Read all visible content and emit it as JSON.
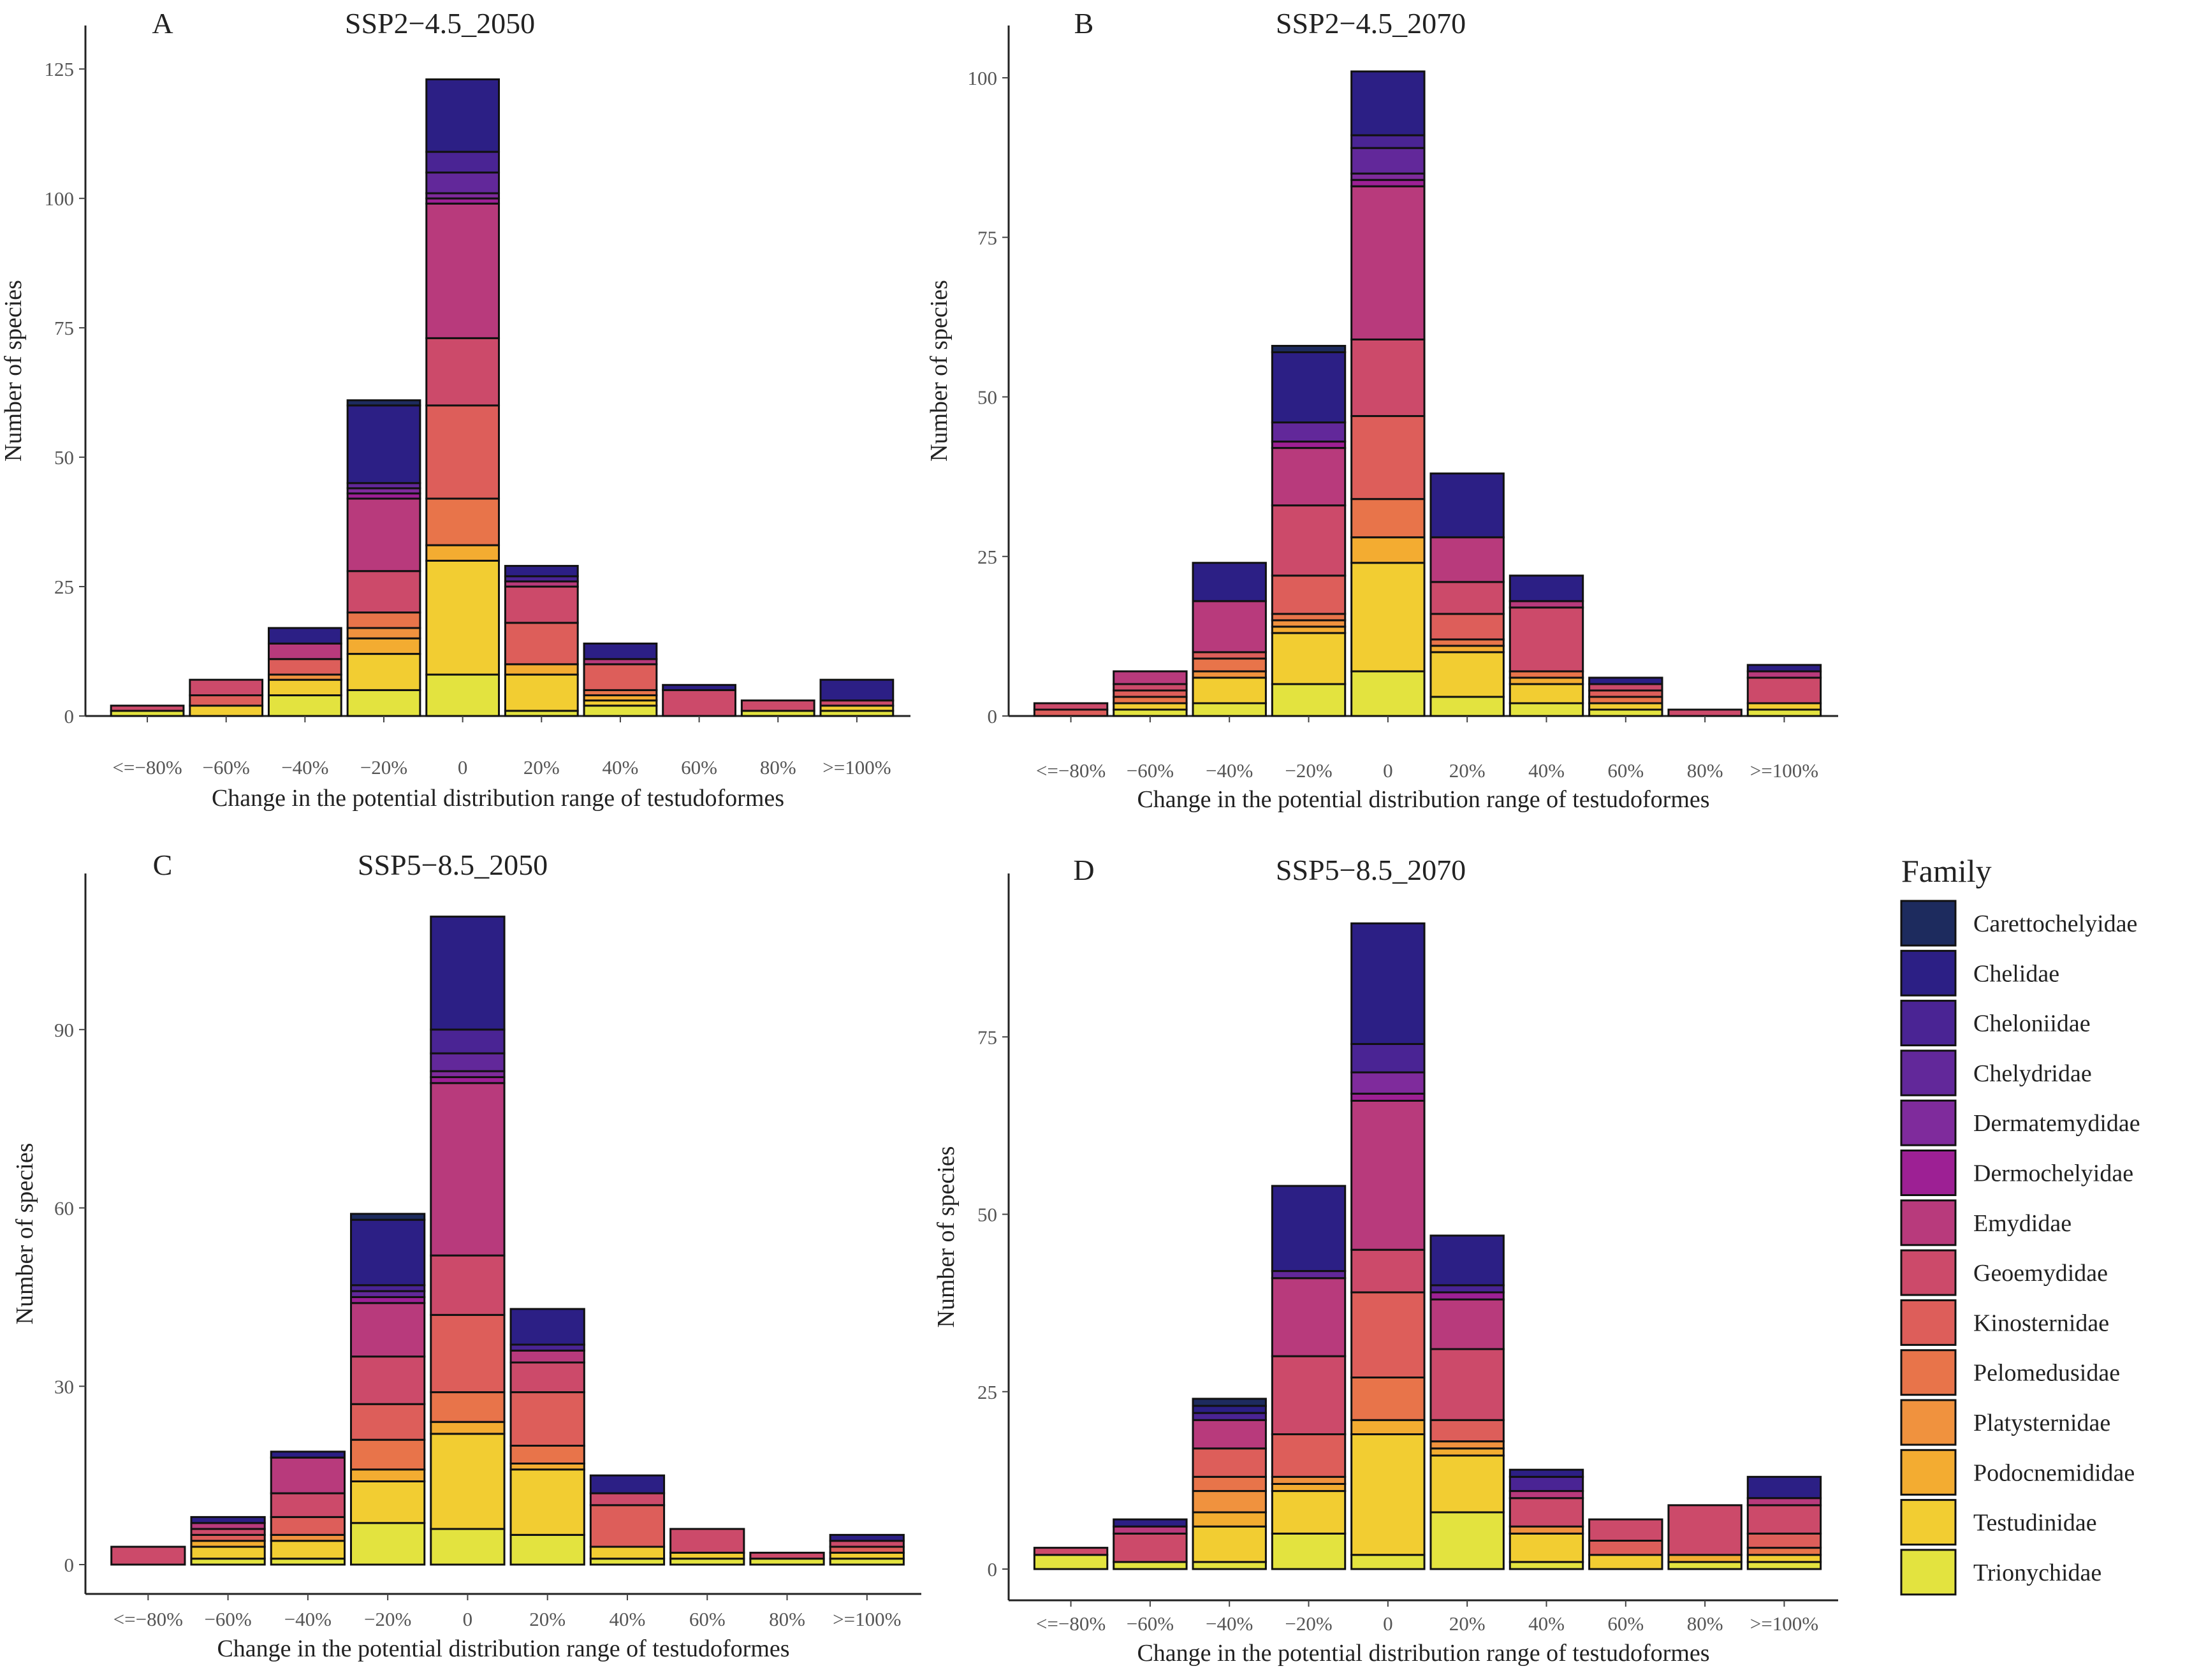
{
  "chart_data": {
    "type": "bar",
    "stacked": true,
    "family_order": [
      "Trionychidae",
      "Testudinidae",
      "Podocnemididae",
      "Platysternidae",
      "Pelomedusidae",
      "Kinosternidae",
      "Geoemydidae",
      "Emydidae",
      "Dermochelyidae",
      "Dermatemydidae",
      "Chelydridae",
      "Cheloniidae",
      "Chelidae",
      "Carettochelyidae"
    ],
    "legend": {
      "title": "Family",
      "placement": "right",
      "items": [
        {
          "name": "Carettochelyidae",
          "color": "#1d2b5e"
        },
        {
          "name": "Chelidae",
          "color": "#2c1f85"
        },
        {
          "name": "Cheloniidae",
          "color": "#4a2494"
        },
        {
          "name": "Chelydridae",
          "color": "#62289a"
        },
        {
          "name": "Dermatemydidae",
          "color": "#7f2b9c"
        },
        {
          "name": "Dermochelyidae",
          "color": "#9d2094"
        },
        {
          "name": "Emydidae",
          "color": "#b83a7c"
        },
        {
          "name": "Geoemydidae",
          "color": "#cc4a6a"
        },
        {
          "name": "Kinosternidae",
          "color": "#dd5e5a"
        },
        {
          "name": "Pelomedusidae",
          "color": "#e8744a"
        },
        {
          "name": "Platysternidae",
          "color": "#f0923e"
        },
        {
          "name": "Podocnemididae",
          "color": "#f3ac31"
        },
        {
          "name": "Testudinidae",
          "color": "#f2cd32"
        },
        {
          "name": "Trionychidae",
          "color": "#e3e33f"
        }
      ]
    },
    "panels": [
      {
        "letter": "A",
        "title": "SSP2−4.5_2050",
        "xlabel": "Change in the potential distribution range of testudoformes",
        "ylabel": "Number of species",
        "categories": [
          "<=−80%",
          "−60%",
          "−40%",
          "−20%",
          "0",
          "20%",
          "40%",
          "60%",
          "80%",
          ">=100%"
        ],
        "ylim": [
          0,
          127
        ],
        "yticks": [
          0,
          25,
          50,
          75,
          100,
          125
        ],
        "stacks": [
          {
            "Trionychidae": 1,
            "Geoemydidae": 1
          },
          {
            "Testudinidae": 2,
            "Kinosternidae": 2,
            "Geoemydidae": 3
          },
          {
            "Trionychidae": 4,
            "Testudinidae": 3,
            "Platysternidae": 1,
            "Kinosternidae": 3,
            "Emydidae": 3,
            "Chelidae": 3
          },
          {
            "Trionychidae": 5,
            "Testudinidae": 7,
            "Podocnemididae": 3,
            "Platysternidae": 2,
            "Pelomedusidae": 3,
            "Geoemydidae": 8,
            "Emydidae": 14,
            "Dermochelyidae": 1,
            "Dermatemydidae": 1,
            "Chelydridae": 1,
            "Chelidae": 15,
            "Carettochelyidae": 1
          },
          {
            "Trionychidae": 8,
            "Testudinidae": 22,
            "Podocnemididae": 3,
            "Pelomedusidae": 9,
            "Kinosternidae": 18,
            "Geoemydidae": 13,
            "Emydidae": 26,
            "Dermochelyidae": 1,
            "Dermatemydidae": 1,
            "Chelydridae": 4,
            "Cheloniidae": 4,
            "Chelidae": 14
          },
          {
            "Trionychidae": 1,
            "Testudinidae": 7,
            "Podocnemididae": 2,
            "Kinosternidae": 8,
            "Geoemydidae": 7,
            "Emydidae": 1,
            "Cheloniidae": 1,
            "Chelidae": 2
          },
          {
            "Trionychidae": 2,
            "Testudinidae": 1,
            "Podocnemididae": 1,
            "Pelomedusidae": 1,
            "Kinosternidae": 5,
            "Emydidae": 1,
            "Chelidae": 3
          },
          {
            "Geoemydidae": 5,
            "Chelidae": 1
          },
          {
            "Trionychidae": 1,
            "Geoemydidae": 2
          },
          {
            "Trionychidae": 1,
            "Testudinidae": 1,
            "Geoemydidae": 1,
            "Chelidae": 4
          }
        ]
      },
      {
        "letter": "B",
        "title": "SSP2−4.5_2070",
        "xlabel": "Change in the potential distribution range of testudoformes",
        "ylabel": "Number of species",
        "categories": [
          "<=−80%",
          "−60%",
          "−40%",
          "−20%",
          "0",
          "20%",
          "40%",
          "60%",
          "80%",
          ">=100%"
        ],
        "ylim": [
          0,
          103
        ],
        "yticks": [
          0,
          25,
          50,
          75,
          100
        ],
        "stacks": [
          {
            "Kinosternidae": 1,
            "Geoemydidae": 1
          },
          {
            "Trionychidae": 1,
            "Testudinidae": 1,
            "Pelomedusidae": 1,
            "Kinosternidae": 1,
            "Geoemydidae": 1,
            "Emydidae": 2
          },
          {
            "Trionychidae": 2,
            "Testudinidae": 4,
            "Platysternidae": 1,
            "Pelomedusidae": 2,
            "Kinosternidae": 1,
            "Emydidae": 8,
            "Chelidae": 6
          },
          {
            "Trionychidae": 5,
            "Testudinidae": 8,
            "Podocnemididae": 1,
            "Platysternidae": 1,
            "Pelomedusidae": 1,
            "Kinosternidae": 6,
            "Geoemydidae": 11,
            "Emydidae": 9,
            "Dermochelyidae": 1,
            "Chelydridae": 3,
            "Chelidae": 11,
            "Carettochelyidae": 1
          },
          {
            "Trionychidae": 7,
            "Testudinidae": 17,
            "Podocnemididae": 4,
            "Pelomedusidae": 6,
            "Kinosternidae": 13,
            "Geoemydidae": 12,
            "Emydidae": 24,
            "Dermochelyidae": 1,
            "Dermatemydidae": 1,
            "Chelydridae": 4,
            "Cheloniidae": 2,
            "Chelidae": 10
          },
          {
            "Trionychidae": 3,
            "Testudinidae": 7,
            "Podocnemididae": 1,
            "Pelomedusidae": 1,
            "Kinosternidae": 4,
            "Geoemydidae": 5,
            "Emydidae": 7,
            "Chelidae": 10
          },
          {
            "Trionychidae": 2,
            "Testudinidae": 3,
            "Podocnemididae": 1,
            "Pelomedusidae": 1,
            "Geoemydidae": 10,
            "Emydidae": 1,
            "Chelidae": 4
          },
          {
            "Trionychidae": 1,
            "Testudinidae": 1,
            "Pelomedusidae": 1,
            "Kinosternidae": 1,
            "Geoemydidae": 1,
            "Chelidae": 1
          },
          {
            "Geoemydidae": 1
          },
          {
            "Trionychidae": 1,
            "Testudinidae": 1,
            "Geoemydidae": 4,
            "Emydidae": 1,
            "Chelidae": 1
          }
        ]
      },
      {
        "letter": "C",
        "title": "SSP5−8.5_2050",
        "xlabel": "Change in the potential distribution range of testudoformes",
        "ylabel": "Number of species",
        "categories": [
          "<=−80%",
          "−60%",
          "−40%",
          "−20%",
          "0",
          "20%",
          "40%",
          "60%",
          "80%",
          ">=100%"
        ],
        "ylim": [
          0,
          111
        ],
        "yticks": [
          0,
          30,
          60,
          90
        ],
        "stacks": [
          {
            "Geoemydidae": 3
          },
          {
            "Trionychidae": 1,
            "Testudinidae": 2,
            "Podocnemididae": 1,
            "Kinosternidae": 1,
            "Geoemydidae": 1,
            "Emydidae": 1,
            "Chelidae": 1
          },
          {
            "Trionychidae": 1,
            "Testudinidae": 3,
            "Platysternidae": 1,
            "Kinosternidae": 3,
            "Geoemydidae": 4,
            "Emydidae": 6,
            "Chelidae": 1
          },
          {
            "Trionychidae": 7,
            "Testudinidae": 7,
            "Podocnemididae": 2,
            "Pelomedusidae": 5,
            "Kinosternidae": 6,
            "Geoemydidae": 8,
            "Emydidae": 9,
            "Dermochelyidae": 1,
            "Chelydridae": 1,
            "Cheloniidae": 1,
            "Chelidae": 11,
            "Carettochelyidae": 1
          },
          {
            "Trionychidae": 6,
            "Testudinidae": 16,
            "Podocnemididae": 2,
            "Pelomedusidae": 5,
            "Kinosternidae": 13,
            "Geoemydidae": 10,
            "Emydidae": 29,
            "Dermochelyidae": 1,
            "Dermatemydidae": 1,
            "Chelydridae": 3,
            "Cheloniidae": 4,
            "Chelidae": 19
          },
          {
            "Trionychidae": 5,
            "Testudinidae": 11,
            "Podocnemididae": 1,
            "Pelomedusidae": 3,
            "Kinosternidae": 9,
            "Geoemydidae": 5,
            "Emydidae": 2,
            "Cheloniidae": 1,
            "Chelidae": 6
          },
          {
            "Trionychidae": 1,
            "Testudinidae": 2,
            "Kinosternidae": 7,
            "Geoemydidae": 2,
            "Chelidae": 3
          },
          {
            "Trionychidae": 1,
            "Testudinidae": 1,
            "Geoemydidae": 4
          },
          {
            "Trionychidae": 1,
            "Geoemydidae": 1
          },
          {
            "Trionychidae": 1,
            "Testudinidae": 1,
            "Kinosternidae": 1,
            "Geoemydidae": 1,
            "Chelidae": 1
          }
        ]
      },
      {
        "letter": "D",
        "title": "SSP5−8.5_2070",
        "xlabel": "Change in the potential distribution range of testudoformes",
        "ylabel": "Number of species",
        "categories": [
          "<=−80%",
          "−60%",
          "−40%",
          "−20%",
          "0",
          "20%",
          "40%",
          "60%",
          "80%",
          ">=100%"
        ],
        "ylim": [
          0,
          93
        ],
        "yticks": [
          0,
          25,
          50,
          75
        ],
        "stacks": [
          {
            "Trionychidae": 2,
            "Geoemydidae": 1
          },
          {
            "Trionychidae": 1,
            "Geoemydidae": 4,
            "Emydidae": 1,
            "Chelidae": 1
          },
          {
            "Trionychidae": 1,
            "Testudinidae": 5,
            "Podocnemididae": 2,
            "Platysternidae": 3,
            "Pelomedusidae": 2,
            "Kinosternidae": 4,
            "Emydidae": 4,
            "Cheloniidae": 1,
            "Chelidae": 1,
            "Carettochelyidae": 1
          },
          {
            "Trionychidae": 5,
            "Testudinidae": 6,
            "Podocnemididae": 1,
            "Platysternidae": 1,
            "Kinosternidae": 6,
            "Geoemydidae": 11,
            "Emydidae": 11,
            "Chelydridae": 1,
            "Chelidae": 12
          },
          {
            "Trionychidae": 2,
            "Testudinidae": 17,
            "Podocnemididae": 2,
            "Pelomedusidae": 6,
            "Kinosternidae": 12,
            "Geoemydidae": 6,
            "Emydidae": 21,
            "Dermochelyidae": 1,
            "Dermatemydidae": 3,
            "Cheloniidae": 4,
            "Chelidae": 17
          },
          {
            "Trionychidae": 8,
            "Testudinidae": 8,
            "Podocnemididae": 1,
            "Platysternidae": 1,
            "Kinosternidae": 3,
            "Geoemydidae": 10,
            "Emydidae": 7,
            "Dermochelyidae": 1,
            "Cheloniidae": 1,
            "Chelidae": 7
          },
          {
            "Trionychidae": 1,
            "Testudinidae": 4,
            "Platysternidae": 1,
            "Geoemydidae": 4,
            "Emydidae": 1,
            "Cheloniidae": 2,
            "Chelidae": 1
          },
          {
            "Testudinidae": 2,
            "Kinosternidae": 2,
            "Geoemydidae": 3
          },
          {
            "Trionychidae": 1,
            "Podocnemididae": 1,
            "Geoemydidae": 7
          },
          {
            "Trionychidae": 1,
            "Testudinidae": 1,
            "Pelomedusidae": 1,
            "Kinosternidae": 2,
            "Geoemydidae": 4,
            "Emydidae": 1,
            "Chelidae": 3
          }
        ]
      }
    ]
  }
}
